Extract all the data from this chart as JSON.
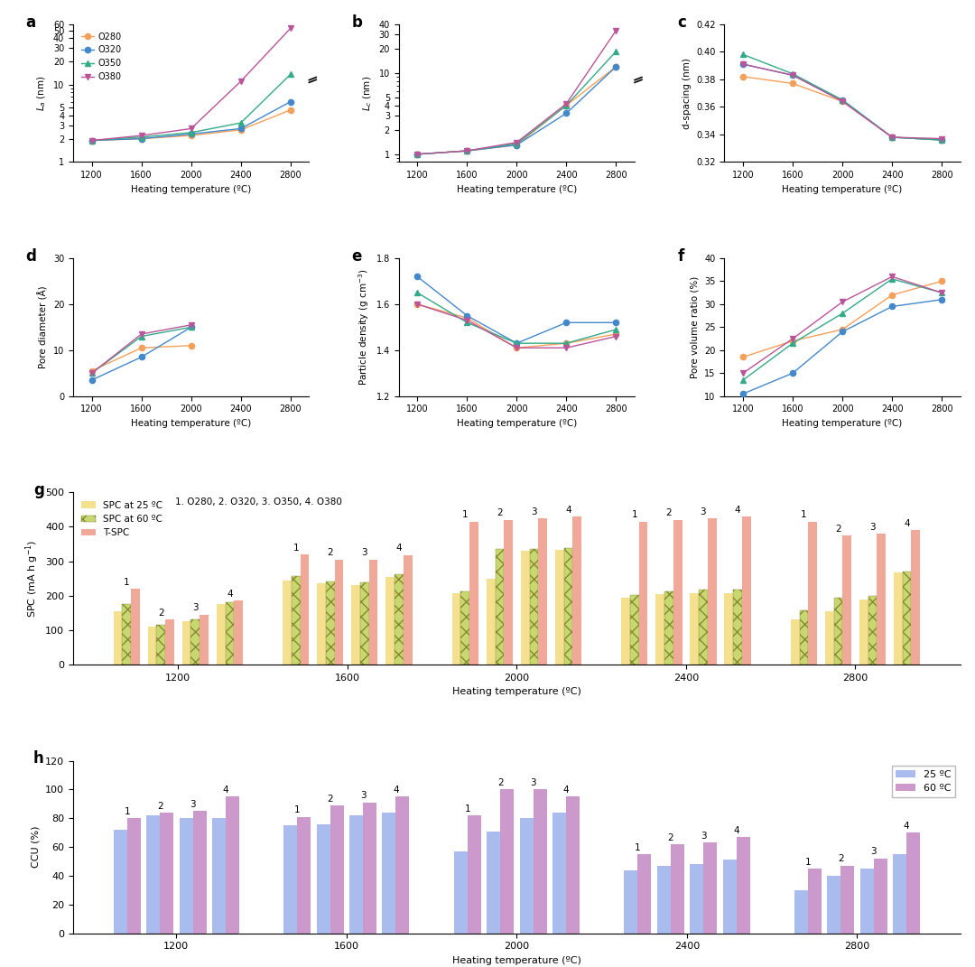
{
  "temps": [
    1200,
    1600,
    2000,
    2400,
    2800
  ],
  "colors": {
    "O280": "#F5A05A",
    "O320": "#4488CC",
    "O350": "#33AA88",
    "O380": "#BB5599"
  },
  "markers": {
    "O280": "o",
    "O320": "o",
    "O350": "^",
    "O380": "v"
  },
  "La": {
    "O280": [
      1.9,
      2.0,
      2.2,
      2.6,
      4.7
    ],
    "O320": [
      1.9,
      2.0,
      2.3,
      2.7,
      6.0
    ],
    "O350": [
      1.9,
      2.1,
      2.4,
      3.2,
      13.5
    ],
    "O380": [
      1.9,
      2.2,
      2.7,
      11.0,
      53.0
    ]
  },
  "Lc": {
    "O280": [
      1.0,
      1.1,
      1.3,
      4.0,
      12.0
    ],
    "O320": [
      1.0,
      1.1,
      1.3,
      3.2,
      12.0
    ],
    "O350": [
      1.0,
      1.1,
      1.35,
      4.0,
      18.5
    ],
    "O380": [
      1.0,
      1.1,
      1.4,
      4.2,
      33.5
    ]
  },
  "d_spacing": {
    "O280": [
      0.382,
      0.377,
      0.364,
      0.338,
      0.336
    ],
    "O320": [
      0.391,
      0.383,
      0.365,
      0.338,
      0.336
    ],
    "O350": [
      0.398,
      0.384,
      0.365,
      0.338,
      0.336
    ],
    "O380": [
      0.391,
      0.383,
      0.364,
      0.338,
      0.337
    ]
  },
  "pore_diameter": {
    "O280": [
      5.5,
      10.5,
      11.0,
      null,
      null
    ],
    "O320": [
      3.5,
      8.5,
      15.0,
      null,
      null
    ],
    "O350": [
      5.0,
      13.0,
      15.0,
      null,
      null
    ],
    "O380": [
      5.0,
      13.5,
      15.5,
      null,
      null
    ]
  },
  "particle_density": {
    "O280": [
      1.6,
      1.54,
      1.41,
      1.43,
      1.47
    ],
    "O320": [
      1.72,
      1.55,
      1.43,
      1.52,
      1.52
    ],
    "O350": [
      1.65,
      1.52,
      1.43,
      1.43,
      1.49
    ],
    "O380": [
      1.6,
      1.53,
      1.41,
      1.41,
      1.46
    ]
  },
  "pore_volume": {
    "O280": [
      18.5,
      22.0,
      24.5,
      32.0,
      35.0
    ],
    "O320": [
      10.5,
      15.0,
      24.0,
      29.5,
      31.0
    ],
    "O350": [
      13.5,
      21.5,
      28.0,
      35.5,
      32.5
    ],
    "O380": [
      15.0,
      22.5,
      30.5,
      36.0,
      32.5
    ]
  },
  "spc_temps": [
    1200,
    1600,
    2000,
    2400,
    2800
  ],
  "spc_25": {
    "O280": [
      155,
      245,
      207,
      195,
      130
    ],
    "O320": [
      110,
      235,
      248,
      205,
      155
    ],
    "O350": [
      125,
      230,
      330,
      207,
      190
    ],
    "O380": [
      175,
      255,
      333,
      207,
      268
    ]
  },
  "spc_60": {
    "O280": [
      175,
      258,
      212,
      202,
      158
    ],
    "O320": [
      115,
      242,
      335,
      212,
      195
    ],
    "O350": [
      130,
      238,
      335,
      217,
      200
    ],
    "O380": [
      182,
      262,
      338,
      218,
      270
    ]
  },
  "tspc": {
    "O280": [
      220,
      320,
      415,
      415,
      415
    ],
    "O320": [
      130,
      305,
      420,
      420,
      375
    ],
    "O350": [
      145,
      305,
      425,
      425,
      380
    ],
    "O380": [
      185,
      318,
      430,
      430,
      390
    ]
  },
  "ccu_25": {
    "O280": [
      72,
      75,
      57,
      44,
      30
    ],
    "O320": [
      82,
      76,
      71,
      47,
      40
    ],
    "O350": [
      80,
      82,
      80,
      48,
      45
    ],
    "O380": [
      80,
      84,
      84,
      51,
      55
    ]
  },
  "ccu_60": {
    "O280": [
      80,
      81,
      82,
      55,
      45
    ],
    "O320": [
      84,
      89,
      100,
      62,
      47
    ],
    "O350": [
      85,
      91,
      100,
      63,
      52
    ],
    "O380": [
      95,
      95,
      95,
      67,
      70
    ]
  },
  "bar_colors": {
    "spc25": "#F5E090",
    "spc60": "#C8D870",
    "tspc": "#F0A898"
  },
  "ccu_colors": {
    "25": "#AABBEE",
    "60": "#CC99CC"
  }
}
